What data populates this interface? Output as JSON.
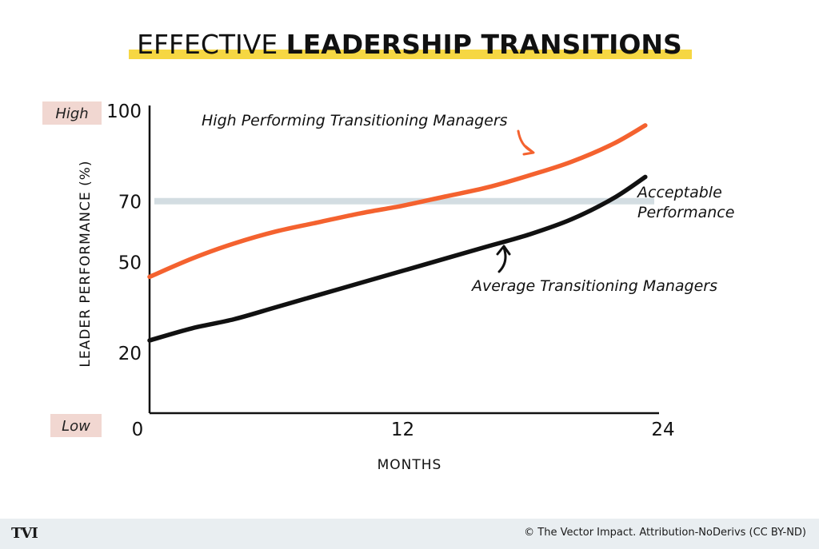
{
  "title": {
    "light": "EFFECTIVE ",
    "bold": "LEADERSHIP TRANSITIONS"
  },
  "colors": {
    "high_series": "#f4622f",
    "avg_series": "#111111",
    "acceptable_line": "#d3dde2",
    "title_highlight": "#f6d743",
    "badge_bg": "#f1d7d1"
  },
  "footer": {
    "logo": "TVI",
    "credit": "© The Vector Impact. Attribution-NoDerivs (CC BY-ND)"
  },
  "chart_data": {
    "type": "line",
    "title": "EFFECTIVE LEADERSHIP TRANSITIONS",
    "xlabel": "MONTHS",
    "ylabel": "LEADER PERFORMANCE (%)",
    "xlim": [
      0,
      24
    ],
    "ylim": [
      0,
      100
    ],
    "x_ticks": [
      {
        "value": 0,
        "label": "0"
      },
      {
        "value": 12,
        "label": "12"
      },
      {
        "value": 24,
        "label": "24"
      }
    ],
    "y_ticks": [
      {
        "value": 20,
        "label": "20"
      },
      {
        "value": 50,
        "label": "50"
      },
      {
        "value": 70,
        "label": "70"
      },
      {
        "value": 100,
        "label": "100"
      }
    ],
    "y_end_labels": {
      "high": "High",
      "low": "Low"
    },
    "series": [
      {
        "name": "High Performing Transitioning Managers",
        "x": [
          0,
          2,
          4,
          6,
          8,
          10,
          12,
          14,
          16,
          18,
          20,
          22,
          23.5
        ],
        "values": [
          45,
          51,
          56,
          60,
          63,
          66,
          68.5,
          71.5,
          74.5,
          78.5,
          83,
          89,
          95
        ]
      },
      {
        "name": "Average Transitioning Managers",
        "x": [
          0,
          2,
          4,
          6,
          8,
          10,
          12,
          14,
          16,
          18,
          20,
          22,
          23.5
        ],
        "values": [
          24,
          28,
          31,
          35,
          39,
          43,
          47,
          51,
          55,
          59,
          64,
          71,
          78
        ]
      }
    ],
    "reference_line": {
      "label": [
        "Acceptable",
        "Performance"
      ],
      "value": 70
    }
  }
}
